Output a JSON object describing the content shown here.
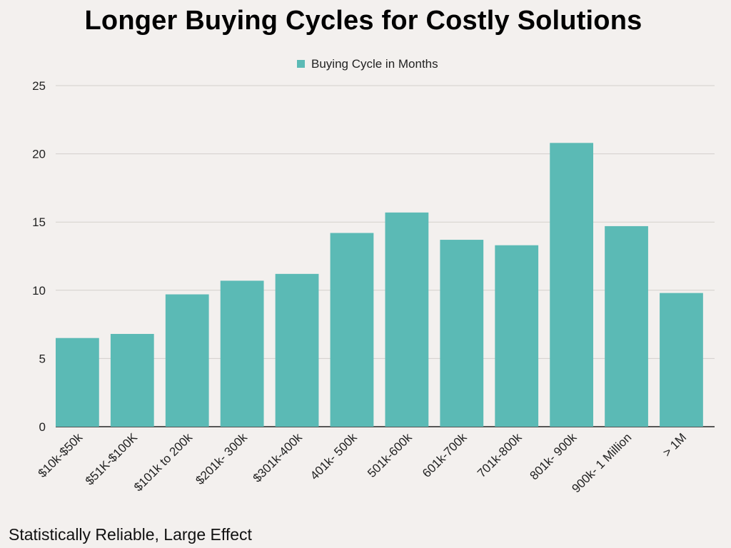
{
  "title": "Longer Buying Cycles for Costly Solutions",
  "footnote": "Statistically Reliable, Large Effect",
  "chart_data": {
    "type": "bar",
    "title": "Longer Buying Cycles for Costly Solutions",
    "xlabel": "",
    "ylabel": "",
    "categories": [
      "$10k-$50k",
      "$51K-$100K",
      "$101k to 200k",
      "$201k- 300k",
      "$301k-400k",
      "401k- 500k",
      "501k-600k",
      "601k-700k",
      "701k-800k",
      "801k- 900k",
      "900k- 1 Million",
      "> 1M"
    ],
    "series": [
      {
        "name": "Buying Cycle in Months",
        "values": [
          6.5,
          6.8,
          9.7,
          10.7,
          11.2,
          14.2,
          15.7,
          13.7,
          13.3,
          20.8,
          14.7,
          9.8
        ],
        "color": "#5bbab5"
      }
    ],
    "ylim": [
      0,
      25
    ],
    "yticks": [
      0,
      5,
      10,
      15,
      20,
      25
    ],
    "grid": true,
    "legend_position": "top-center",
    "gridline_color": "#d3cfcc",
    "axis_color": "#222222"
  }
}
